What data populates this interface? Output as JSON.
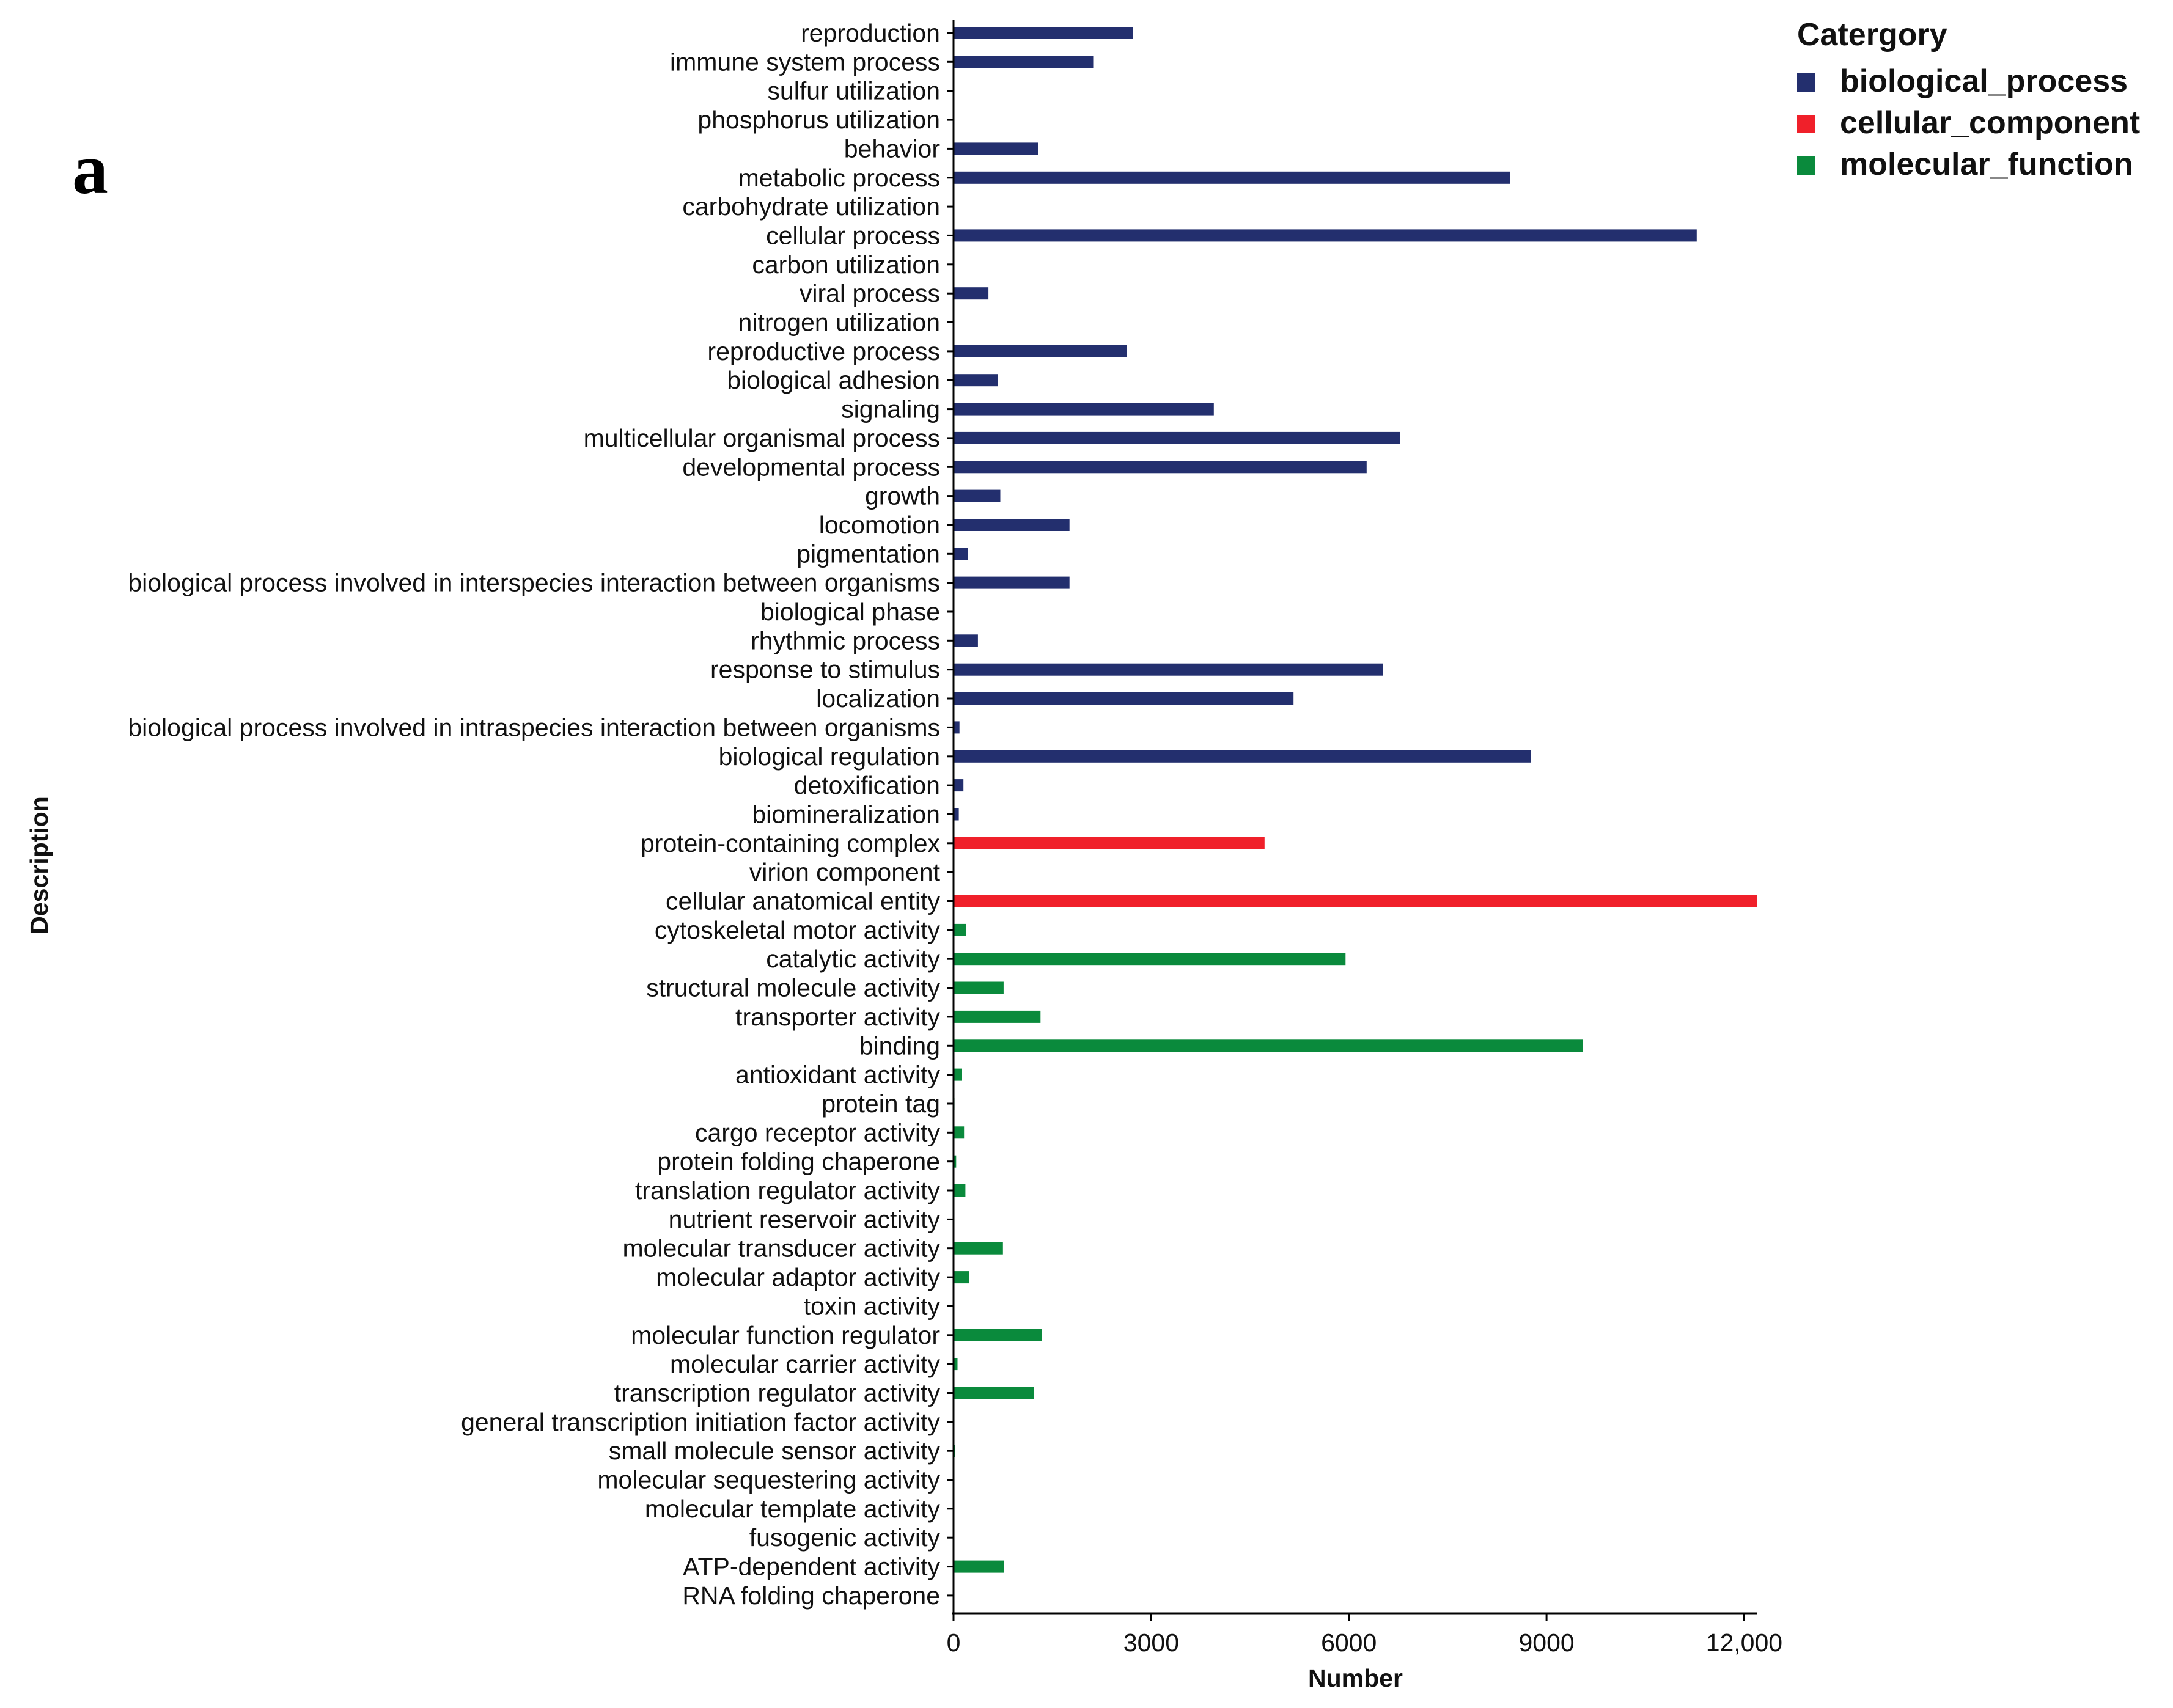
{
  "panel_label": "a",
  "colors": {
    "biological_process": "#232f6e",
    "cellular_component": "#f0202a",
    "molecular_function": "#0a8a3c",
    "axis": "#000000"
  },
  "chart_data": {
    "type": "bar",
    "orientation": "horizontal",
    "xlabel": "Number",
    "ylabel": "Description",
    "xlim": [
      0,
      12200
    ],
    "xticks": [
      0,
      3000,
      6000,
      9000,
      12000
    ],
    "xtick_labels": [
      "0",
      "3000",
      "6000",
      "9000",
      "12,000"
    ],
    "legend": {
      "title": "Catergory",
      "position": "top-right",
      "entries": [
        "biological_process",
        "cellular_component",
        "molecular_function"
      ]
    },
    "categories": [
      "reproduction",
      "immune system process",
      "sulfur utilization",
      "phosphorus utilization",
      "behavior",
      "metabolic process",
      "carbohydrate utilization",
      "cellular process",
      "carbon utilization",
      "viral process",
      "nitrogen utilization",
      "reproductive process",
      "biological adhesion",
      "signaling",
      "multicellular organismal process",
      "developmental process",
      "growth",
      "locomotion",
      "pigmentation",
      "biological process involved in interspecies interaction between organisms",
      "biological phase",
      "rhythmic process",
      "response to stimulus",
      "localization",
      "biological process involved in intraspecies interaction between organisms",
      "biological regulation",
      "detoxification",
      "biomineralization",
      "protein-containing complex",
      "virion component",
      "cellular anatomical entity",
      "cytoskeletal motor activity",
      "catalytic activity",
      "structural molecule activity",
      "transporter activity",
      "binding",
      "antioxidant activity",
      "protein tag",
      "cargo receptor activity",
      "protein folding chaperone",
      "translation regulator activity",
      "nutrient reservoir activity",
      "molecular transducer activity",
      "molecular adaptor activity",
      "toxin activity",
      "molecular function regulator",
      "molecular carrier activity",
      "transcription regulator activity",
      "general transcription initiation factor activity",
      "small molecule sensor activity",
      "molecular sequestering activity",
      "molecular template activity",
      "fusogenic activity",
      "ATP-dependent activity",
      "RNA folding chaperone"
    ],
    "values": [
      2720,
      2120,
      0,
      0,
      1280,
      8450,
      0,
      11280,
      0,
      530,
      0,
      2630,
      670,
      3950,
      6780,
      6270,
      710,
      1760,
      220,
      1760,
      0,
      370,
      6520,
      5160,
      90,
      8760,
      150,
      80,
      4720,
      0,
      12200,
      190,
      5950,
      760,
      1320,
      9550,
      130,
      15,
      160,
      40,
      180,
      0,
      750,
      240,
      0,
      1340,
      60,
      1220,
      0,
      20,
      0,
      0,
      0,
      770,
      0
    ],
    "series_of_category": [
      "biological_process",
      "biological_process",
      "biological_process",
      "biological_process",
      "biological_process",
      "biological_process",
      "biological_process",
      "biological_process",
      "biological_process",
      "biological_process",
      "biological_process",
      "biological_process",
      "biological_process",
      "biological_process",
      "biological_process",
      "biological_process",
      "biological_process",
      "biological_process",
      "biological_process",
      "biological_process",
      "biological_process",
      "biological_process",
      "biological_process",
      "biological_process",
      "biological_process",
      "biological_process",
      "biological_process",
      "biological_process",
      "cellular_component",
      "cellular_component",
      "cellular_component",
      "molecular_function",
      "molecular_function",
      "molecular_function",
      "molecular_function",
      "molecular_function",
      "molecular_function",
      "molecular_function",
      "molecular_function",
      "molecular_function",
      "molecular_function",
      "molecular_function",
      "molecular_function",
      "molecular_function",
      "molecular_function",
      "molecular_function",
      "molecular_function",
      "molecular_function",
      "molecular_function",
      "molecular_function",
      "molecular_function",
      "molecular_function",
      "molecular_function",
      "molecular_function",
      "molecular_function"
    ]
  }
}
